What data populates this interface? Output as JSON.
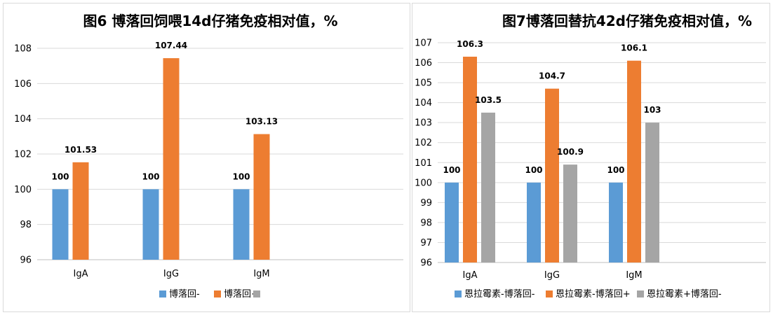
{
  "chart_data": [
    {
      "type": "bar",
      "title": "图6 博落回饲喂14d仔猪免疫相对值，%",
      "categories": [
        "IgA",
        "IgG",
        "IgM"
      ],
      "ylim": [
        96,
        108
      ],
      "yticks": [
        96,
        98,
        100,
        102,
        104,
        106,
        108
      ],
      "grid": true,
      "legend": "bottom",
      "series": [
        {
          "name": "博落回-",
          "color": "#5b9bd5",
          "values": [
            100,
            100,
            100
          ],
          "labels": [
            "100",
            "100",
            "100"
          ]
        },
        {
          "name": "博落回+",
          "color": "#ed7d31",
          "values": [
            101.53,
            107.44,
            103.13
          ],
          "labels": [
            "101.53",
            "107.44",
            "103.13"
          ]
        },
        {
          "name": "",
          "color": "#a5a5a5",
          "values": [
            null,
            null,
            null
          ],
          "labels": [
            null,
            null,
            null
          ]
        }
      ]
    },
    {
      "type": "bar",
      "title": "图7博落回替抗42d仔猪免疫相对值，%",
      "categories": [
        "IgA",
        "IgG",
        "IgM"
      ],
      "ylim": [
        96,
        107
      ],
      "yticks": [
        96,
        97,
        98,
        99,
        100,
        101,
        102,
        103,
        104,
        105,
        106,
        107
      ],
      "grid": true,
      "legend": "bottom",
      "series": [
        {
          "name": "恩拉霉素-博落回-",
          "color": "#5b9bd5",
          "values": [
            100,
            100,
            100
          ],
          "labels": [
            "100",
            "100",
            "100"
          ]
        },
        {
          "name": "恩拉霉素-博落回+",
          "color": "#ed7d31",
          "values": [
            106.3,
            104.7,
            106.1
          ],
          "labels": [
            "106.3",
            "104.7",
            "106.1"
          ]
        },
        {
          "name": "恩拉霉素+博落回-",
          "color": "#a5a5a5",
          "values": [
            103.5,
            100.9,
            103
          ],
          "labels": [
            "103.5",
            "100.9",
            "103"
          ]
        }
      ]
    }
  ]
}
